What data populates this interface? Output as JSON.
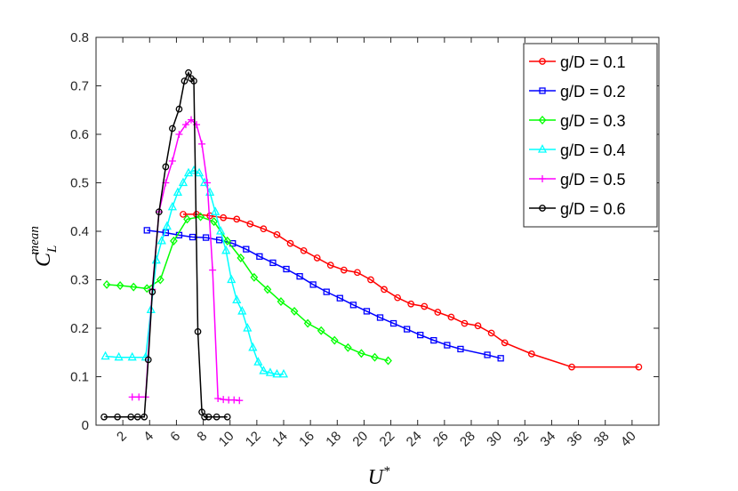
{
  "chart_data": {
    "type": "line",
    "title": "",
    "xlabel": {
      "base": "U",
      "sup": "*"
    },
    "ylabel": {
      "base": "C",
      "sub": "L",
      "sup": "mean"
    },
    "xlim": [
      0,
      42
    ],
    "ylim": [
      0,
      0.8
    ],
    "xticks": [
      2,
      4,
      6,
      8,
      10,
      12,
      14,
      16,
      18,
      20,
      22,
      24,
      26,
      28,
      30,
      32,
      34,
      36,
      38,
      40
    ],
    "yticks": [
      0,
      0.1,
      0.2,
      0.3,
      0.4,
      0.5,
      0.6,
      0.7,
      0.8
    ],
    "xtick_labels": [
      "2",
      "4",
      "6",
      "8",
      "10",
      "12",
      "14",
      "16",
      "18",
      "20",
      "22",
      "24",
      "26",
      "28",
      "30",
      "32",
      "34",
      "36",
      "38",
      "40"
    ],
    "ytick_labels": [
      "0",
      "0.1",
      "0.2",
      "0.3",
      "0.4",
      "0.5",
      "0.6",
      "0.7",
      "0.8"
    ],
    "grid": false,
    "legend_position": "top-right",
    "series": [
      {
        "name": "g/D = 0.1",
        "color": "#ff0000",
        "marker": "circle",
        "x": [
          6.5,
          7.5,
          8.5,
          9.5,
          10.5,
          11.5,
          12.5,
          13.5,
          14.5,
          15.5,
          16.5,
          17.5,
          18.5,
          19.5,
          20.5,
          21.5,
          22.5,
          23.5,
          24.5,
          25.5,
          26.5,
          27.5,
          28.5,
          29.5,
          30.5,
          32.5,
          35.5,
          40.5
        ],
        "y": [
          0.435,
          0.435,
          0.432,
          0.428,
          0.425,
          0.415,
          0.405,
          0.393,
          0.375,
          0.36,
          0.345,
          0.33,
          0.32,
          0.315,
          0.3,
          0.28,
          0.263,
          0.25,
          0.245,
          0.233,
          0.223,
          0.21,
          0.205,
          0.19,
          0.17,
          0.147,
          0.12,
          0.12
        ]
      },
      {
        "name": "g/D = 0.2",
        "color": "#0000ff",
        "marker": "square",
        "x": [
          3.8,
          5.2,
          6.2,
          7.2,
          8.2,
          9.2,
          10.2,
          11.2,
          12.2,
          13.2,
          14.2,
          15.2,
          16.2,
          17.2,
          18.2,
          19.2,
          20.2,
          21.2,
          22.2,
          23.2,
          24.2,
          25.2,
          26.2,
          27.2,
          29.2,
          30.2
        ],
        "y": [
          0.402,
          0.397,
          0.392,
          0.388,
          0.387,
          0.382,
          0.375,
          0.363,
          0.348,
          0.335,
          0.322,
          0.307,
          0.29,
          0.275,
          0.262,
          0.248,
          0.235,
          0.222,
          0.21,
          0.198,
          0.186,
          0.175,
          0.165,
          0.157,
          0.145,
          0.138
        ]
      },
      {
        "name": "g/D = 0.3",
        "color": "#00ff00",
        "marker": "diamond",
        "x": [
          0.8,
          1.8,
          2.8,
          3.8,
          4.8,
          5.8,
          6.8,
          7.8,
          8.8,
          9.8,
          10.8,
          11.8,
          12.8,
          13.8,
          14.8,
          15.8,
          16.8,
          17.8,
          18.8,
          19.8,
          20.8,
          21.8
        ],
        "y": [
          0.29,
          0.288,
          0.285,
          0.282,
          0.3,
          0.38,
          0.425,
          0.43,
          0.42,
          0.38,
          0.345,
          0.305,
          0.28,
          0.255,
          0.235,
          0.21,
          0.195,
          0.175,
          0.16,
          0.148,
          0.14,
          0.133
        ]
      },
      {
        "name": "g/D = 0.4",
        "color": "#00ffff",
        "marker": "triangle",
        "x": [
          0.7,
          1.7,
          2.7,
          3.7,
          4.1,
          4.5,
          4.9,
          5.3,
          5.7,
          6.1,
          6.5,
          6.9,
          7.3,
          7.7,
          8.1,
          8.5,
          8.9,
          9.3,
          9.7,
          10.1,
          10.5,
          10.9,
          11.3,
          11.7,
          12.1,
          12.5,
          13.0,
          13.5,
          14.0
        ],
        "y": [
          0.142,
          0.14,
          0.14,
          0.14,
          0.238,
          0.34,
          0.38,
          0.41,
          0.45,
          0.48,
          0.5,
          0.52,
          0.525,
          0.52,
          0.5,
          0.48,
          0.44,
          0.4,
          0.36,
          0.3,
          0.258,
          0.235,
          0.2,
          0.16,
          0.13,
          0.112,
          0.108,
          0.105,
          0.105
        ]
      },
      {
        "name": "g/D = 0.5",
        "color": "#ff00ff",
        "marker": "plus",
        "x": [
          2.7,
          3.2,
          3.7,
          4.2,
          4.7,
          5.2,
          5.7,
          6.2,
          6.7,
          7.1,
          7.5,
          7.9,
          8.3,
          8.7,
          9.1,
          9.5,
          9.9,
          10.3,
          10.7
        ],
        "y": [
          0.058,
          0.058,
          0.058,
          0.28,
          0.44,
          0.5,
          0.545,
          0.6,
          0.62,
          0.63,
          0.62,
          0.58,
          0.5,
          0.32,
          0.055,
          0.053,
          0.052,
          0.052,
          0.051
        ]
      },
      {
        "name": "g/D = 0.6",
        "color": "#000000",
        "marker": "circle",
        "x": [
          0.6,
          1.6,
          2.6,
          3.1,
          3.6,
          3.9,
          4.2,
          4.7,
          5.2,
          5.7,
          6.2,
          6.6,
          6.9,
          7.1,
          7.3,
          7.6,
          7.9,
          8.1,
          8.4,
          9.0,
          9.8
        ],
        "y": [
          0.017,
          0.017,
          0.017,
          0.017,
          0.017,
          0.135,
          0.275,
          0.44,
          0.533,
          0.612,
          0.652,
          0.71,
          0.727,
          0.715,
          0.71,
          0.193,
          0.027,
          0.017,
          0.017,
          0.017,
          0.017
        ]
      }
    ]
  }
}
